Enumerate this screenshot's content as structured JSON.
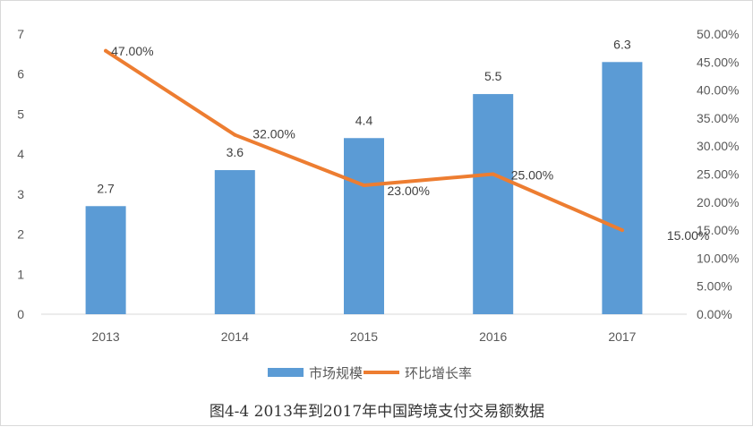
{
  "chart_data": {
    "type": "bar+line",
    "categories": [
      "2013",
      "2014",
      "2015",
      "2016",
      "2017"
    ],
    "series": [
      {
        "name": "市场规模",
        "type": "bar",
        "axis": "left",
        "values": [
          2.7,
          3.6,
          4.4,
          5.5,
          6.3
        ],
        "labels": [
          "2.7",
          "3.6",
          "4.4",
          "5.5",
          "6.3"
        ],
        "color": "#5b9bd5"
      },
      {
        "name": "环比增长率",
        "type": "line",
        "axis": "right",
        "values": [
          0.47,
          0.32,
          0.23,
          0.25,
          0.15
        ],
        "labels": [
          "47.00%",
          "32.00%",
          "23.00%",
          "25.00%",
          "15.00%"
        ],
        "color": "#ed7d31"
      }
    ],
    "y_left": {
      "range": [
        0,
        7
      ],
      "ticks": [
        "0",
        "1",
        "2",
        "3",
        "4",
        "5",
        "6",
        "7"
      ]
    },
    "y_right": {
      "range": [
        0,
        0.5
      ],
      "ticks": [
        "0.00%",
        "5.00%",
        "10.00%",
        "15.00%",
        "20.00%",
        "25.00%",
        "30.00%",
        "35.00%",
        "40.00%",
        "45.00%",
        "50.00%"
      ]
    },
    "legend_position": "bottom",
    "grid": false,
    "title": "图4-4  2013年到2017年中国跨境支付交易额数据"
  }
}
